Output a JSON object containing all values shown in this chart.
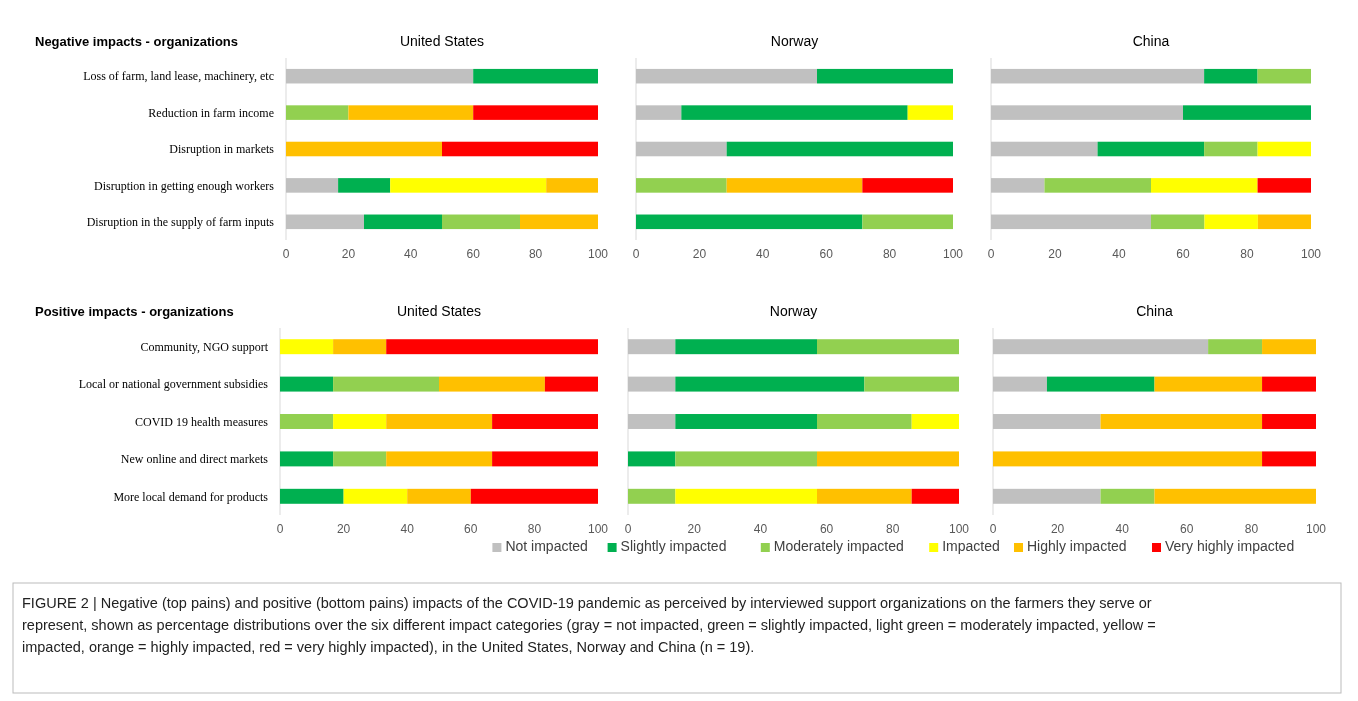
{
  "chart_data": [
    {
      "type": "bar",
      "orientation": "horizontal",
      "stacked": true,
      "title": "United States",
      "subtitle": "Negative impacts - organizations",
      "categories": [
        "Loss of farm, land lease, machinery, etc",
        "Reduction in farm income",
        "Disruption in markets",
        "Disruption in getting enough workers",
        "Disruption in the supply of farm inputs"
      ],
      "xlim": [
        0,
        100
      ],
      "xticks": [
        0,
        20,
        40,
        60,
        80,
        100
      ],
      "grid": false,
      "legend": false,
      "series": [
        {
          "color": "#c0c0c0",
          "values": [
            60,
            null,
            null,
            16.7,
            25
          ]
        },
        {
          "color": "#00b050",
          "values": [
            40,
            null,
            null,
            16.7,
            25
          ]
        },
        {
          "color": "#92d050",
          "values": [
            null,
            20,
            null,
            null,
            25
          ]
        },
        {
          "color": "#ffff00",
          "values": [
            null,
            null,
            null,
            50,
            null
          ]
        },
        {
          "color": "#ffc000",
          "values": [
            null,
            40,
            50,
            16.6,
            25
          ]
        },
        {
          "color": "#ff0000",
          "values": [
            null,
            40,
            50,
            null,
            null
          ]
        }
      ]
    },
    {
      "type": "bar",
      "orientation": "horizontal",
      "stacked": true,
      "title": "Norway",
      "categories": [
        null,
        null,
        null,
        null,
        null
      ],
      "tick_labels": "x",
      "xlim": [
        0,
        100
      ],
      "xticks": [
        0,
        20,
        40,
        60,
        80,
        100
      ],
      "grid": false,
      "legend": false,
      "series": [
        {
          "color": "#c0c0c0",
          "values": [
            57.1,
            14.3,
            28.6,
            null,
            null
          ]
        },
        {
          "color": "#00b050",
          "values": [
            42.9,
            71.4,
            71.4,
            null,
            71.4
          ]
        },
        {
          "color": "#92d050",
          "values": [
            null,
            null,
            null,
            28.6,
            28.6
          ]
        },
        {
          "color": "#ffff00",
          "values": [
            null,
            14.3,
            null,
            null,
            null
          ]
        },
        {
          "color": "#ffc000",
          "values": [
            null,
            null,
            null,
            42.8,
            null
          ]
        },
        {
          "color": "#ff0000",
          "values": [
            null,
            null,
            null,
            28.6,
            null
          ]
        }
      ]
    },
    {
      "type": "bar",
      "orientation": "horizontal",
      "stacked": true,
      "title": "China",
      "categories": [
        null,
        null,
        null,
        null,
        null
      ],
      "tick_labels": "x",
      "xlim": [
        0,
        100
      ],
      "xticks": [
        0,
        20,
        40,
        60,
        80,
        100
      ],
      "grid": false,
      "legend": false,
      "series": [
        {
          "color": "#c0c0c0",
          "values": [
            66.6,
            60,
            33.3,
            16.7,
            50
          ]
        },
        {
          "color": "#00b050",
          "values": [
            16.7,
            40,
            33.3,
            null,
            null
          ]
        },
        {
          "color": "#92d050",
          "values": [
            16.7,
            null,
            16.7,
            33.3,
            16.7
          ]
        },
        {
          "color": "#ffff00",
          "values": [
            null,
            null,
            16.7,
            33.3,
            16.7
          ]
        },
        {
          "color": "#ffc000",
          "values": [
            null,
            null,
            null,
            null,
            16.6
          ]
        },
        {
          "color": "#ff0000",
          "values": [
            null,
            null,
            null,
            16.7,
            null
          ]
        }
      ]
    },
    {
      "type": "bar",
      "orientation": "horizontal",
      "stacked": true,
      "title": "United States",
      "subtitle": "Positive impacts - organizations",
      "categories": [
        "Community, NGO support",
        "Local or national government subsidies",
        "COVID 19 health measures",
        "New online and direct markets",
        "More local demand for products"
      ],
      "xlim": [
        0,
        100
      ],
      "xticks": [
        0,
        20,
        40,
        60,
        80,
        100
      ],
      "grid": false,
      "legend": false,
      "series": [
        {
          "color": "#00b050",
          "values": [
            null,
            16.7,
            null,
            16.7,
            20
          ]
        },
        {
          "color": "#92d050",
          "values": [
            null,
            33.3,
            16.7,
            16.7,
            null
          ]
        },
        {
          "color": "#ffff00",
          "values": [
            16.7,
            null,
            16.7,
            null,
            20
          ]
        },
        {
          "color": "#ffc000",
          "values": [
            16.7,
            33.3,
            33.3,
            33.3,
            20
          ]
        },
        {
          "color": "#ff0000",
          "values": [
            66.6,
            16.7,
            33.3,
            33.3,
            40
          ]
        }
      ]
    },
    {
      "type": "bar",
      "orientation": "horizontal",
      "stacked": true,
      "title": "Norway",
      "categories": [
        null,
        null,
        null,
        null,
        null
      ],
      "tick_labels": "x",
      "xlim": [
        0,
        100
      ],
      "xticks": [
        0,
        20,
        40,
        60,
        80,
        100
      ],
      "grid": false,
      "legend": false,
      "series": [
        {
          "color": "#c0c0c0",
          "values": [
            14.3,
            14.3,
            14.3,
            null,
            null
          ]
        },
        {
          "color": "#00b050",
          "values": [
            42.8,
            57.1,
            42.8,
            14.3,
            null
          ]
        },
        {
          "color": "#92d050",
          "values": [
            42.9,
            28.6,
            28.6,
            42.8,
            14.3
          ]
        },
        {
          "color": "#ffff00",
          "values": [
            null,
            null,
            14.3,
            null,
            42.8
          ]
        },
        {
          "color": "#ffc000",
          "values": [
            null,
            null,
            null,
            42.9,
            28.6
          ]
        },
        {
          "color": "#ff0000",
          "values": [
            null,
            null,
            null,
            null,
            14.3
          ]
        }
      ]
    },
    {
      "type": "bar",
      "orientation": "horizontal",
      "stacked": true,
      "title": "China",
      "categories": [
        null,
        null,
        null,
        null,
        null
      ],
      "tick_labels": "x",
      "xlim": [
        0,
        100
      ],
      "xticks": [
        0,
        20,
        40,
        60,
        80,
        100
      ],
      "grid": false,
      "legend": "bottom",
      "annotations": [
        "FIGURE 2 | Negative (top pains) and positive (bottom pains) impacts of the COVID-19 pandemic as perceived by interviewed support organizations on the farmers they serve or represent, shown as percentage distributions over the six different impact categories (gray = not impacted, green = slightly impacted, light green = moderately impacted, yellow = impacted, orange = highly impacted, red = very highly impacted), in the United States, Norway and China (n = 19)."
      ],
      "series": [
        {
          "name": "Not impacted",
          "color": "#c0c0c0",
          "values": [
            66.6,
            16.7,
            33.3,
            null,
            33.3
          ]
        },
        {
          "name": "Slightly impacted",
          "color": "#00b050",
          "values": [
            null,
            33.3,
            null,
            null,
            null
          ]
        },
        {
          "name": "Moderately impacted",
          "color": "#92d050",
          "values": [
            16.7,
            null,
            null,
            null,
            16.7
          ]
        },
        {
          "name": "Impacted",
          "color": "#ffff00",
          "values": [
            null,
            null,
            null,
            null,
            null
          ]
        },
        {
          "name": "Highly impacted",
          "color": "#ffc000",
          "values": [
            16.7,
            33.3,
            50,
            83.3,
            50
          ]
        },
        {
          "name": "Very highly impacted",
          "color": "#ff0000",
          "values": [
            null,
            16.7,
            16.7,
            16.7,
            null
          ]
        }
      ]
    }
  ]
}
